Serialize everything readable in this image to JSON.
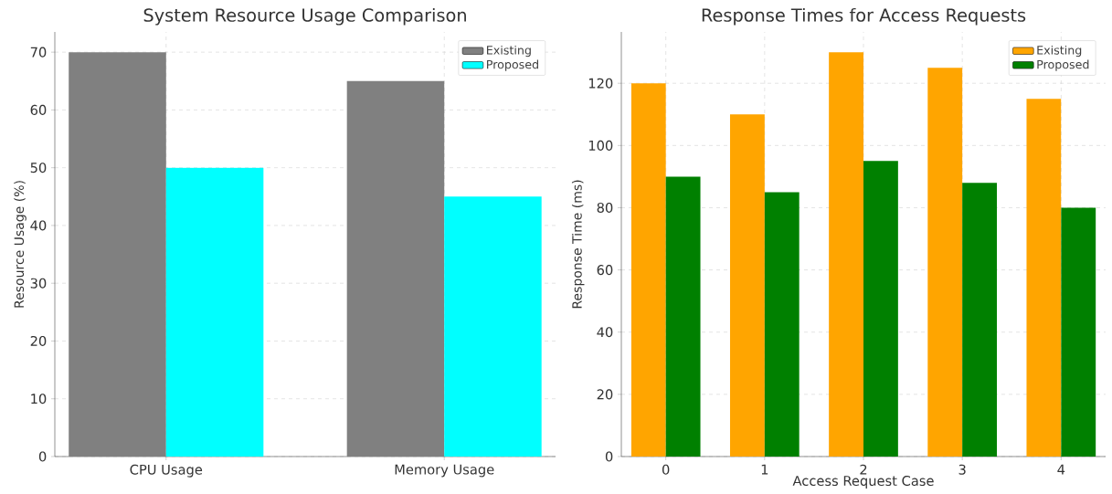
{
  "chart_data": [
    {
      "type": "bar",
      "title": "System Resource Usage Comparison",
      "ylabel": "Resource Usage (%)",
      "categories": [
        "CPU Usage",
        "Memory Usage"
      ],
      "series": [
        {
          "name": "Existing",
          "color": "#808080",
          "values": [
            70,
            65
          ]
        },
        {
          "name": "Proposed",
          "color": "#00ffff",
          "values": [
            50,
            45
          ]
        }
      ],
      "ylim": [
        0,
        73.5
      ],
      "yticks": [
        0,
        10,
        20,
        30,
        40,
        50,
        60,
        70
      ],
      "grid": true,
      "legend": "top right"
    },
    {
      "type": "bar",
      "title": "Response Times for Access Requests",
      "xlabel": "Access Request Case",
      "ylabel": "Response Time (ms)",
      "categories": [
        "0",
        "1",
        "2",
        "3",
        "4"
      ],
      "series": [
        {
          "name": "Existing",
          "color": "#ffa500",
          "values": [
            120,
            110,
            130,
            125,
            115
          ]
        },
        {
          "name": "Proposed",
          "color": "#008000",
          "values": [
            90,
            85,
            95,
            88,
            80
          ]
        }
      ],
      "ylim": [
        0,
        136.5
      ],
      "yticks": [
        0,
        20,
        40,
        60,
        80,
        100,
        120
      ],
      "grid": true,
      "legend": "top right"
    }
  ]
}
